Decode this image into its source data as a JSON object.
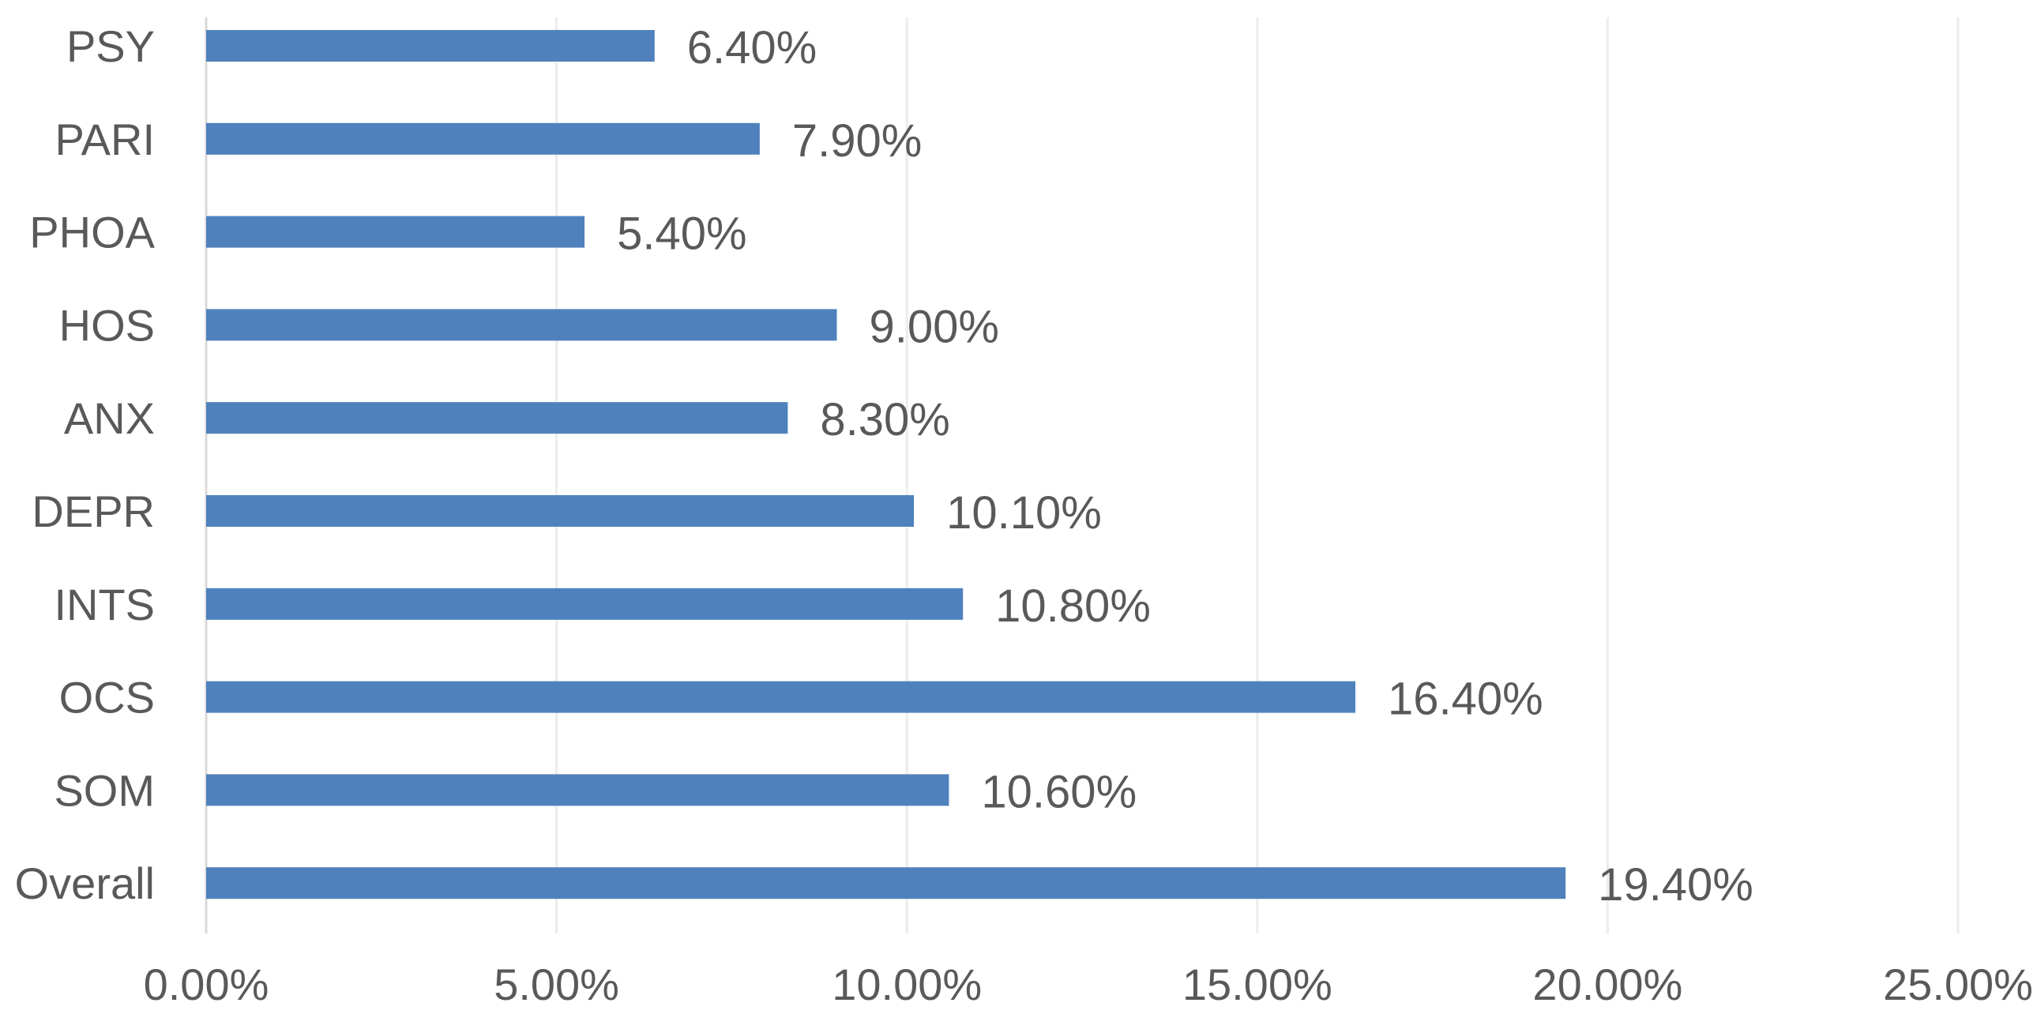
{
  "chart_data": {
    "type": "bar",
    "orientation": "horizontal",
    "categories": [
      "PSY",
      "PARI",
      "PHOA",
      "HOS",
      "ANX",
      "DEPR",
      "INTS",
      "OCS",
      "SOM",
      "Overall"
    ],
    "values": [
      6.4,
      7.9,
      5.4,
      9.0,
      8.3,
      10.1,
      10.8,
      16.4,
      10.6,
      19.4
    ],
    "data_labels": [
      "6.40%",
      "7.90%",
      "5.40%",
      "9.00%",
      "8.30%",
      "10.10%",
      "10.80%",
      "16.40%",
      "10.60%",
      "19.40%"
    ],
    "x_ticks": [
      0,
      5,
      10,
      15,
      20,
      25
    ],
    "x_tick_labels": [
      "0.00%",
      "5.00%",
      "10.00%",
      "15.00%",
      "20.00%",
      "25.00%"
    ],
    "xlim": [
      0,
      25
    ],
    "title": "",
    "xlabel": "",
    "ylabel": "",
    "grid": "vertical",
    "legend": "none",
    "bar_color": "#4f81bd",
    "text_color": "#595959",
    "grid_color": "#ececec"
  }
}
